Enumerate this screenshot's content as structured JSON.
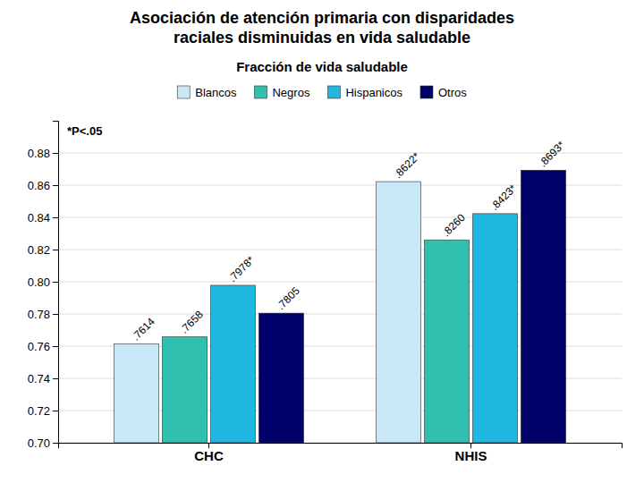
{
  "chart_data": {
    "type": "bar",
    "title": "Asociación de atención primaria con disparidades\nraciales disminuidas en vida saludable",
    "subtitle": "Fracción de vida saludable",
    "annotation": "*P<.05",
    "categories": [
      "CHC",
      "NHIS"
    ],
    "series": [
      {
        "name": "Blancos",
        "color": "#c8e8f8",
        "values": [
          0.7614,
          0.8622
        ],
        "value_labels": [
          ".7614",
          ".8622*"
        ]
      },
      {
        "name": "Negros",
        "color": "#30c0b0",
        "values": [
          0.7658,
          0.826
        ],
        "value_labels": [
          ".7658",
          ".8260"
        ]
      },
      {
        "name": "Hispanicos",
        "color": "#20b8e0",
        "values": [
          0.7978,
          0.8423
        ],
        "value_labels": [
          ".7978*",
          ".8423*"
        ]
      },
      {
        "name": "Otros",
        "color": "#00006a",
        "values": [
          0.7805,
          0.8693
        ],
        "value_labels": [
          ".7805",
          ".8693*"
        ]
      }
    ],
    "ylim": [
      0.7,
      0.9
    ],
    "yticks": [
      {
        "value": 0.7,
        "label": "0.70"
      },
      0.72,
      0.74,
      0.76,
      0.78,
      {
        "value": 0.8,
        "label": "0.80"
      },
      0.82,
      0.84,
      0.86,
      0.88
    ],
    "grid": true,
    "legend": "top",
    "data_labels": true
  }
}
